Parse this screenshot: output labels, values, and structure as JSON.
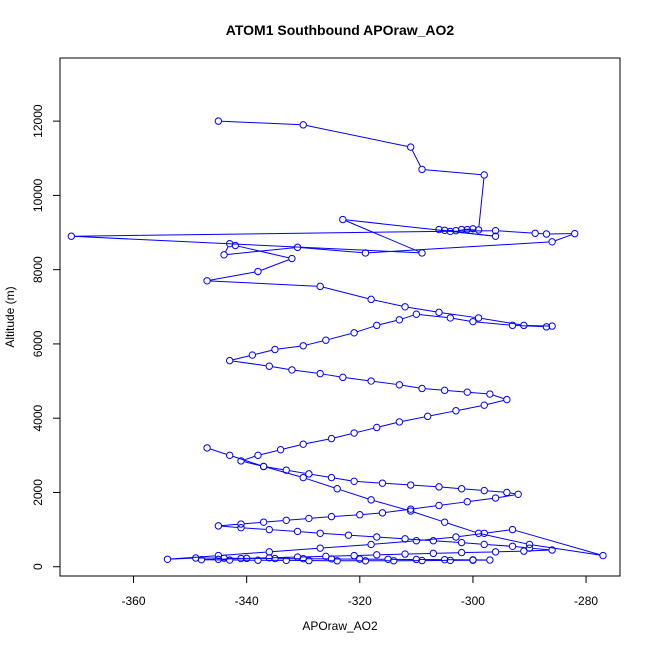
{
  "chart_data": {
    "type": "scatter",
    "title": "ATOM1 Southbound APOraw_AO2",
    "xlabel": "APOraw_AO2",
    "ylabel": "Altitude (m)",
    "xlim": [
      -373,
      -274
    ],
    "ylim": [
      -250,
      13700
    ],
    "xticks": [
      -360,
      -340,
      -320,
      -300,
      -280
    ],
    "yticks": [
      0,
      2000,
      4000,
      6000,
      8000,
      10000,
      12000
    ],
    "grid": false,
    "legend": "none",
    "colors": {
      "series": "#0000ff",
      "axes": "#000000",
      "background": "#ffffff"
    },
    "series": [
      {
        "style": "points-and-lines",
        "x": [
          -345,
          -330,
          -311,
          -309,
          -298,
          -299,
          -302,
          -300,
          -301,
          -303,
          -305,
          -306,
          -304,
          -296,
          -323,
          -309,
          -371,
          -296,
          -289,
          -287,
          -282,
          -286,
          -319,
          -331,
          -344,
          -343,
          -342,
          -332,
          -338,
          -347,
          -327,
          -318,
          -312,
          -306,
          -299,
          -291,
          -286,
          -287,
          -293,
          -300,
          -304,
          -310,
          -313,
          -317,
          -321,
          -326,
          -330,
          -335,
          -339,
          -343,
          -336,
          -332,
          -327,
          -323,
          -318,
          -313,
          -309,
          -305,
          -301,
          -297,
          -294,
          -298,
          -303,
          -308,
          -313,
          -317,
          -321,
          -325,
          -330,
          -334,
          -338,
          -341,
          -337,
          -333,
          -329,
          -325,
          -321,
          -316,
          -311,
          -306,
          -302,
          -298,
          -294,
          -292,
          -296,
          -301,
          -306,
          -311,
          -316,
          -320,
          -325,
          -329,
          -333,
          -337,
          -341,
          -345,
          -341,
          -336,
          -331,
          -327,
          -322,
          -317,
          -312,
          -307,
          -302,
          -298,
          -293,
          -290,
          -286,
          -291,
          -296,
          -302,
          -307,
          -312,
          -317,
          -321,
          -326,
          -331,
          -336,
          -341,
          -345,
          -348,
          -343,
          -338,
          -333,
          -329,
          -324,
          -319,
          -314,
          -309,
          -304,
          -300,
          -297,
          -300,
          -305,
          -310,
          -315,
          -320,
          -325,
          -330,
          -335,
          -340,
          -344,
          -349,
          -354,
          -345,
          -336,
          -327,
          -318,
          -310,
          -303,
          -298,
          -293,
          -277,
          -290,
          -299,
          -305,
          -311,
          -318,
          -324,
          -330,
          -337,
          -343,
          -347
        ],
        "y": [
          12000,
          11900,
          11300,
          10700,
          10550,
          9070,
          9080,
          9100,
          9080,
          9050,
          9060,
          9080,
          9030,
          8900,
          9350,
          8450,
          8900,
          9050,
          8980,
          8960,
          8970,
          8750,
          8450,
          8600,
          8400,
          8700,
          8650,
          8300,
          7950,
          7700,
          7550,
          7200,
          7000,
          6850,
          6700,
          6500,
          6480,
          6460,
          6500,
          6600,
          6700,
          6800,
          6650,
          6500,
          6300,
          6100,
          5950,
          5850,
          5700,
          5550,
          5400,
          5300,
          5200,
          5100,
          5000,
          4900,
          4800,
          4750,
          4700,
          4650,
          4500,
          4350,
          4200,
          4050,
          3900,
          3750,
          3600,
          3450,
          3300,
          3150,
          3000,
          2850,
          2700,
          2600,
          2500,
          2400,
          2300,
          2250,
          2200,
          2150,
          2100,
          2050,
          2000,
          1950,
          1850,
          1750,
          1650,
          1550,
          1450,
          1400,
          1350,
          1300,
          1250,
          1200,
          1150,
          1100,
          1050,
          1000,
          950,
          900,
          850,
          800,
          750,
          700,
          650,
          600,
          550,
          500,
          450,
          420,
          400,
          380,
          360,
          340,
          320,
          300,
          280,
          260,
          240,
          220,
          200,
          190,
          180,
          175,
          170,
          165,
          160,
          160,
          160,
          165,
          170,
          175,
          180,
          185,
          190,
          195,
          200,
          205,
          210,
          215,
          220,
          225,
          230,
          235,
          200,
          300,
          400,
          500,
          600,
          700,
          800,
          900,
          1000,
          300,
          600,
          900,
          1200,
          1500,
          1800,
          2100,
          2400,
          2700,
          3000,
          3200
        ]
      }
    ]
  }
}
